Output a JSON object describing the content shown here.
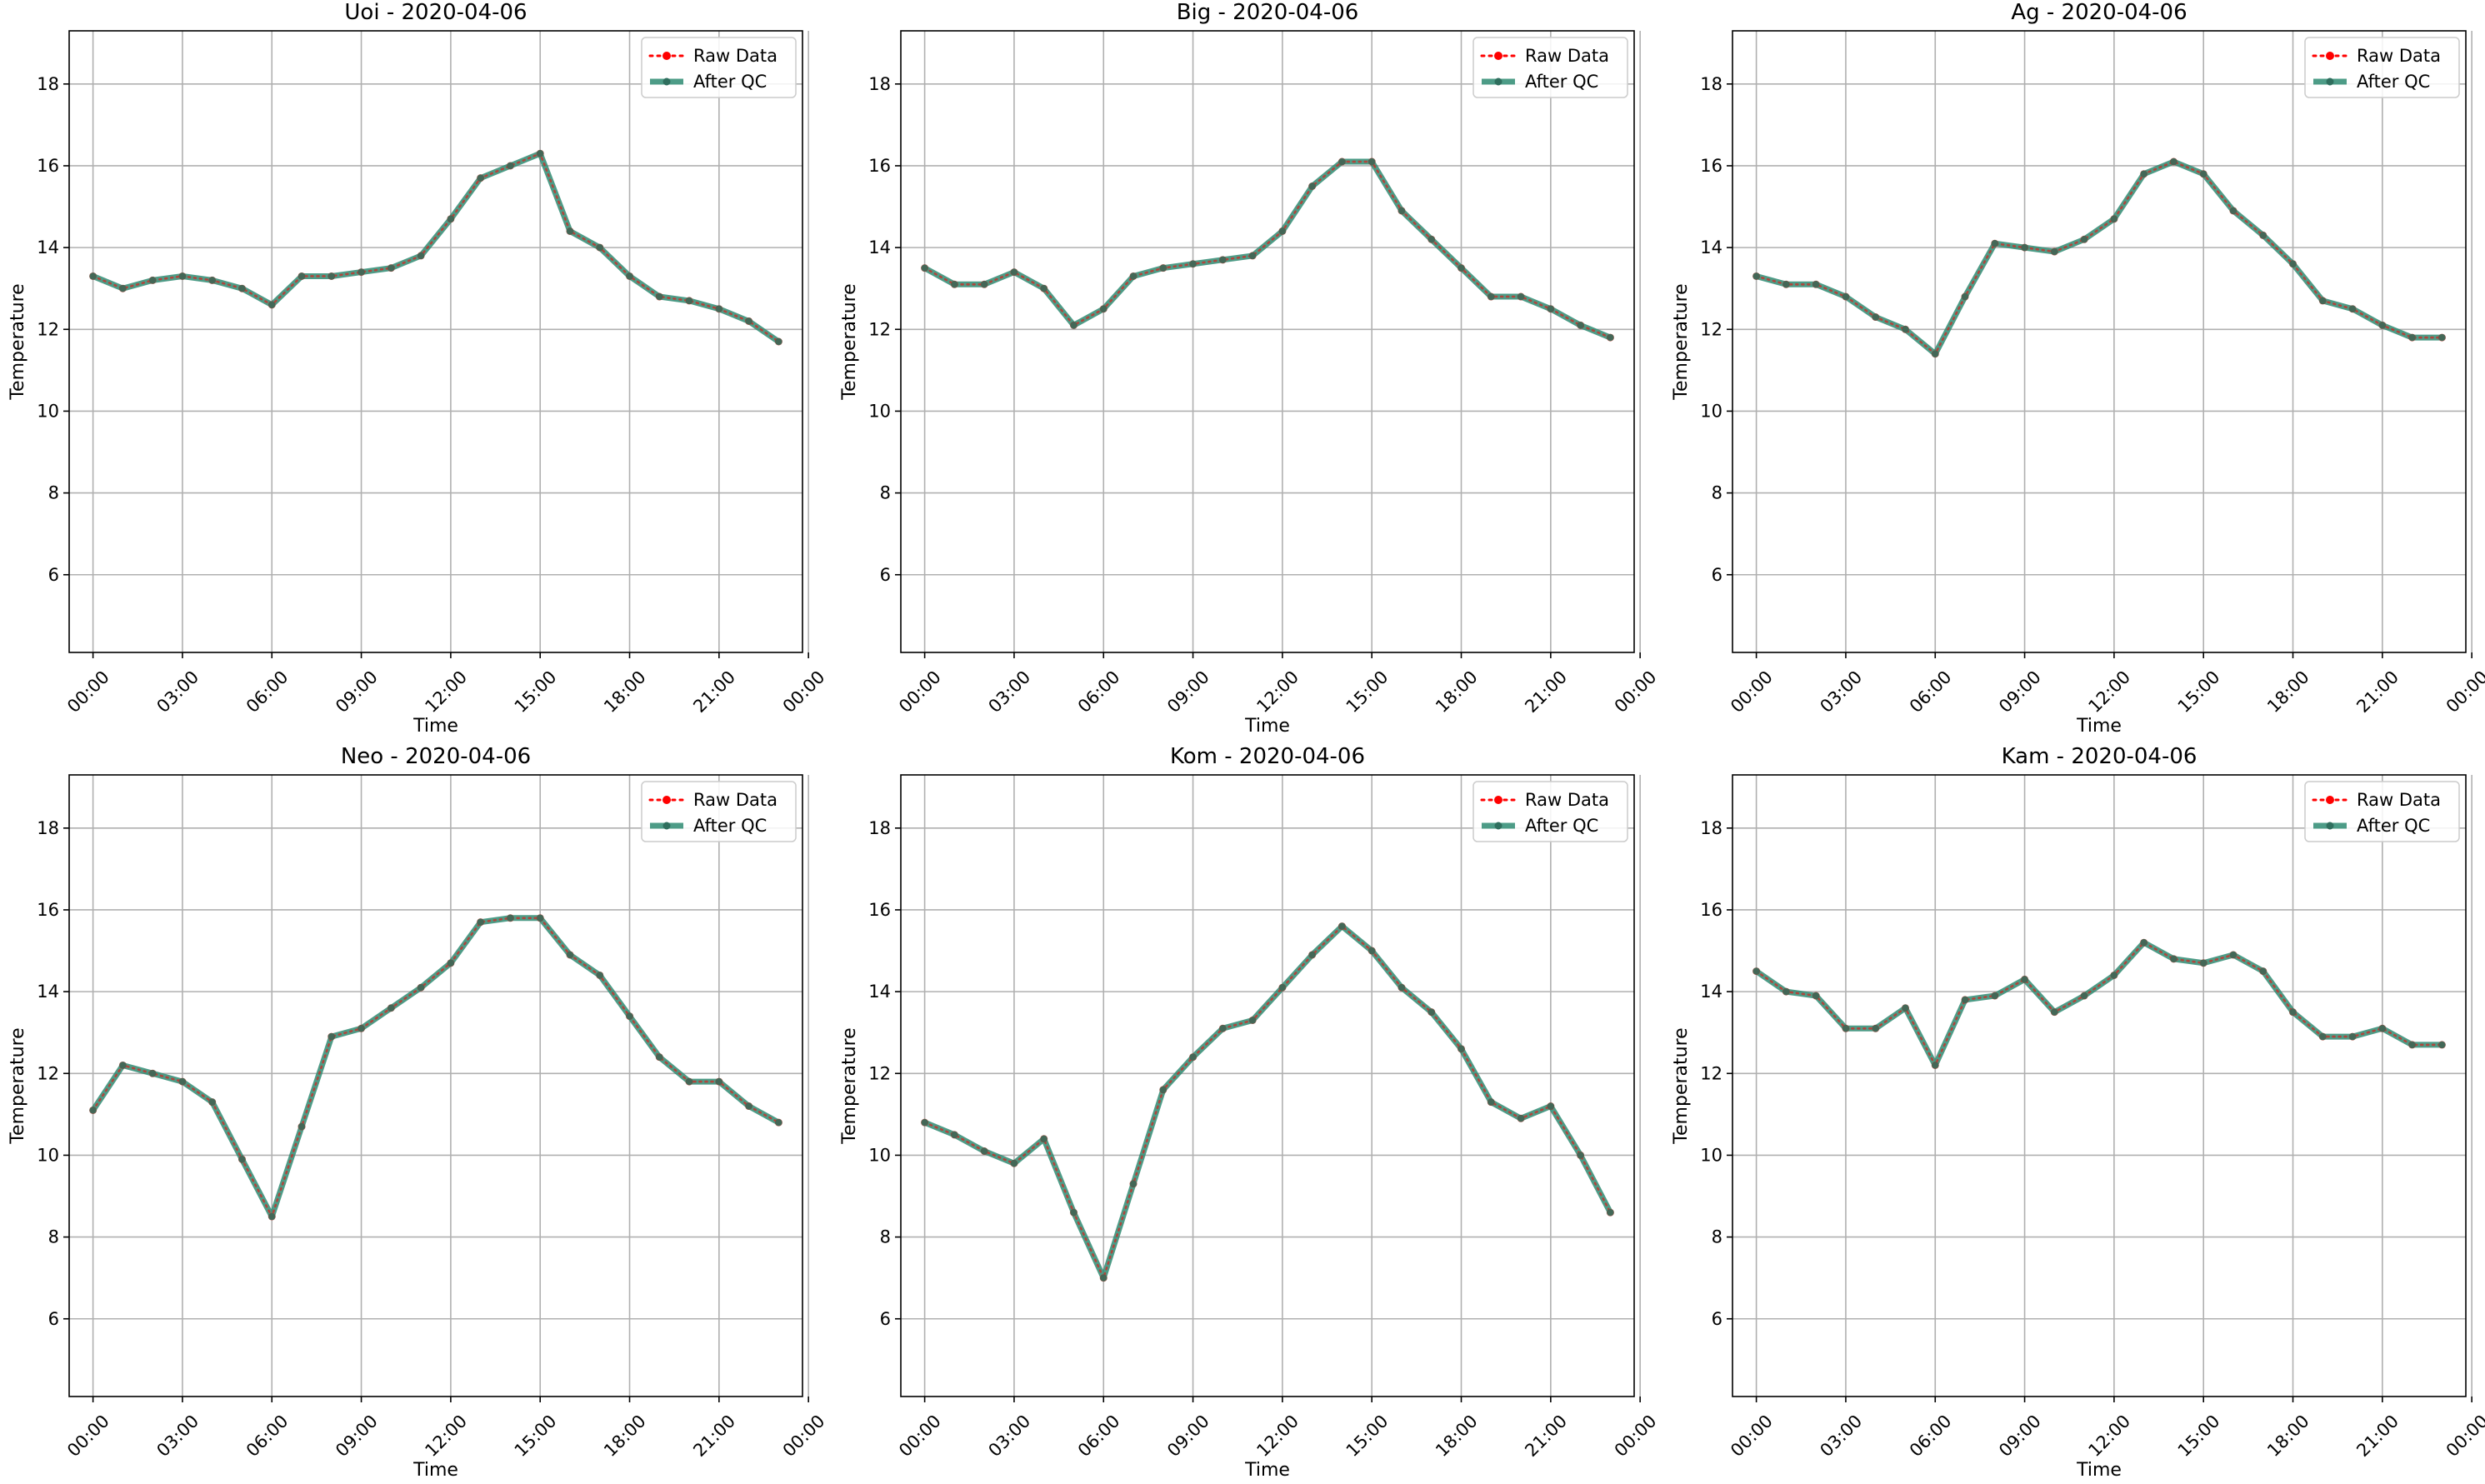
{
  "chart_data": [
    {
      "type": "line",
      "title": "Uoi - 2020-04-06",
      "xlabel": "Time",
      "ylabel": "Temperature",
      "ylim": [
        4.1,
        19.3
      ],
      "yticks": [
        6,
        8,
        10,
        12,
        14,
        16,
        18
      ],
      "xlim": [
        -0.8,
        23.8
      ],
      "xticks": [
        0,
        3,
        6,
        9,
        12,
        15,
        18,
        21,
        24
      ],
      "xticklabels": [
        "00:00",
        "03:00",
        "06:00",
        "09:00",
        "12:00",
        "15:00",
        "18:00",
        "21:00",
        "00:00"
      ],
      "grid": true,
      "legend": "top-right",
      "x": [
        0,
        1,
        2,
        3,
        4,
        5,
        6,
        7,
        8,
        9,
        10,
        11,
        12,
        13,
        14,
        15,
        16,
        17,
        18,
        19,
        20,
        21,
        22,
        23
      ],
      "series": [
        {
          "name": "Raw Data",
          "color": "#ff0000",
          "style": "dotted",
          "values": [
            13.3,
            13.0,
            13.2,
            13.3,
            13.2,
            13.0,
            12.6,
            13.3,
            13.3,
            13.4,
            13.5,
            13.8,
            14.7,
            15.7,
            16.0,
            16.3,
            14.4,
            14.0,
            13.3,
            12.8,
            12.7,
            12.5,
            12.2,
            11.7
          ]
        },
        {
          "name": "After QC",
          "color": "#2e8b72",
          "style": "solid",
          "values": [
            13.3,
            13.0,
            13.2,
            13.3,
            13.2,
            13.0,
            12.6,
            13.3,
            13.3,
            13.4,
            13.5,
            13.8,
            14.7,
            15.7,
            16.0,
            16.3,
            14.4,
            14.0,
            13.3,
            12.8,
            12.7,
            12.5,
            12.2,
            11.7
          ]
        }
      ]
    },
    {
      "type": "line",
      "title": "Big - 2020-04-06",
      "xlabel": "Time",
      "ylabel": "Temperature",
      "ylim": [
        4.1,
        19.3
      ],
      "yticks": [
        6,
        8,
        10,
        12,
        14,
        16,
        18
      ],
      "xlim": [
        -0.8,
        23.8
      ],
      "xticks": [
        0,
        3,
        6,
        9,
        12,
        15,
        18,
        21,
        24
      ],
      "xticklabels": [
        "00:00",
        "03:00",
        "06:00",
        "09:00",
        "12:00",
        "15:00",
        "18:00",
        "21:00",
        "00:00"
      ],
      "grid": true,
      "legend": "top-right",
      "x": [
        0,
        1,
        2,
        3,
        4,
        5,
        6,
        7,
        8,
        9,
        10,
        11,
        12,
        13,
        14,
        15,
        16,
        17,
        18,
        19,
        20,
        21,
        22,
        23
      ],
      "series": [
        {
          "name": "Raw Data",
          "color": "#ff0000",
          "style": "dotted",
          "values": [
            13.5,
            13.1,
            13.1,
            13.4,
            13.0,
            12.1,
            12.5,
            13.3,
            13.5,
            13.6,
            13.7,
            13.8,
            14.4,
            15.5,
            16.1,
            16.1,
            14.9,
            14.2,
            13.5,
            12.8,
            12.8,
            12.5,
            12.1,
            11.8
          ]
        },
        {
          "name": "After QC",
          "color": "#2e8b72",
          "style": "solid",
          "values": [
            13.5,
            13.1,
            13.1,
            13.4,
            13.0,
            12.1,
            12.5,
            13.3,
            13.5,
            13.6,
            13.7,
            13.8,
            14.4,
            15.5,
            16.1,
            16.1,
            14.9,
            14.2,
            13.5,
            12.8,
            12.8,
            12.5,
            12.1,
            11.8
          ]
        }
      ]
    },
    {
      "type": "line",
      "title": "Ag - 2020-04-06",
      "xlabel": "Time",
      "ylabel": "Temperature",
      "ylim": [
        4.1,
        19.3
      ],
      "yticks": [
        6,
        8,
        10,
        12,
        14,
        16,
        18
      ],
      "xlim": [
        -0.8,
        23.8
      ],
      "xticks": [
        0,
        3,
        6,
        9,
        12,
        15,
        18,
        21,
        24
      ],
      "xticklabels": [
        "00:00",
        "03:00",
        "06:00",
        "09:00",
        "12:00",
        "15:00",
        "18:00",
        "21:00",
        "00:00"
      ],
      "grid": true,
      "legend": "top-right",
      "x": [
        0,
        1,
        2,
        3,
        4,
        5,
        6,
        7,
        8,
        9,
        10,
        11,
        12,
        13,
        14,
        15,
        16,
        17,
        18,
        19,
        20,
        21,
        22,
        23
      ],
      "series": [
        {
          "name": "Raw Data",
          "color": "#ff0000",
          "style": "dotted",
          "values": [
            13.3,
            13.1,
            13.1,
            12.8,
            12.3,
            12.0,
            11.4,
            12.8,
            14.1,
            14.0,
            13.9,
            14.2,
            14.7,
            15.8,
            16.1,
            15.8,
            14.9,
            14.3,
            13.6,
            12.7,
            12.5,
            12.1,
            11.8,
            11.8
          ]
        },
        {
          "name": "After QC",
          "color": "#2e8b72",
          "style": "solid",
          "values": [
            13.3,
            13.1,
            13.1,
            12.8,
            12.3,
            12.0,
            11.4,
            12.8,
            14.1,
            14.0,
            13.9,
            14.2,
            14.7,
            15.8,
            16.1,
            15.8,
            14.9,
            14.3,
            13.6,
            12.7,
            12.5,
            12.1,
            11.8,
            11.8
          ]
        }
      ]
    },
    {
      "type": "line",
      "title": "Neo - 2020-04-06",
      "xlabel": "Time",
      "ylabel": "Temperature",
      "ylim": [
        4.1,
        19.3
      ],
      "yticks": [
        6,
        8,
        10,
        12,
        14,
        16,
        18
      ],
      "xlim": [
        -0.8,
        23.8
      ],
      "xticks": [
        0,
        3,
        6,
        9,
        12,
        15,
        18,
        21,
        24
      ],
      "xticklabels": [
        "00:00",
        "03:00",
        "06:00",
        "09:00",
        "12:00",
        "15:00",
        "18:00",
        "21:00",
        "00:00"
      ],
      "grid": true,
      "legend": "top-right",
      "x": [
        0,
        1,
        2,
        3,
        4,
        5,
        6,
        7,
        8,
        9,
        10,
        11,
        12,
        13,
        14,
        15,
        16,
        17,
        18,
        19,
        20,
        21,
        22,
        23
      ],
      "series": [
        {
          "name": "Raw Data",
          "color": "#ff0000",
          "style": "dotted",
          "values": [
            11.1,
            12.2,
            12.0,
            11.8,
            11.3,
            9.9,
            8.5,
            10.7,
            12.9,
            13.1,
            13.6,
            14.1,
            14.7,
            15.7,
            15.8,
            15.8,
            14.9,
            14.4,
            13.4,
            12.4,
            11.8,
            11.8,
            11.2,
            10.8
          ]
        },
        {
          "name": "After QC",
          "color": "#2e8b72",
          "style": "solid",
          "values": [
            11.1,
            12.2,
            12.0,
            11.8,
            11.3,
            9.9,
            8.5,
            10.7,
            12.9,
            13.1,
            13.6,
            14.1,
            14.7,
            15.7,
            15.8,
            15.8,
            14.9,
            14.4,
            13.4,
            12.4,
            11.8,
            11.8,
            11.2,
            10.8
          ]
        }
      ]
    },
    {
      "type": "line",
      "title": "Kom - 2020-04-06",
      "xlabel": "Time",
      "ylabel": "Temperature",
      "ylim": [
        4.1,
        19.3
      ],
      "yticks": [
        6,
        8,
        10,
        12,
        14,
        16,
        18
      ],
      "xlim": [
        -0.8,
        23.8
      ],
      "xticks": [
        0,
        3,
        6,
        9,
        12,
        15,
        18,
        21,
        24
      ],
      "xticklabels": [
        "00:00",
        "03:00",
        "06:00",
        "09:00",
        "12:00",
        "15:00",
        "18:00",
        "21:00",
        "00:00"
      ],
      "grid": true,
      "legend": "top-right",
      "x": [
        0,
        1,
        2,
        3,
        4,
        5,
        6,
        7,
        8,
        9,
        10,
        11,
        12,
        13,
        14,
        15,
        16,
        17,
        18,
        19,
        20,
        21,
        22,
        23
      ],
      "series": [
        {
          "name": "Raw Data",
          "color": "#ff0000",
          "style": "dotted",
          "values": [
            10.8,
            10.5,
            10.1,
            9.8,
            10.4,
            8.6,
            7.0,
            9.3,
            11.6,
            12.4,
            13.1,
            13.3,
            14.1,
            14.9,
            15.6,
            15.0,
            14.1,
            13.5,
            12.6,
            11.3,
            10.9,
            11.2,
            10.0,
            8.6
          ]
        },
        {
          "name": "After QC",
          "color": "#2e8b72",
          "style": "solid",
          "values": [
            10.8,
            10.5,
            10.1,
            9.8,
            10.4,
            8.6,
            7.0,
            9.3,
            11.6,
            12.4,
            13.1,
            13.3,
            14.1,
            14.9,
            15.6,
            15.0,
            14.1,
            13.5,
            12.6,
            11.3,
            10.9,
            11.2,
            10.0,
            8.6
          ]
        }
      ]
    },
    {
      "type": "line",
      "title": "Kam - 2020-04-06",
      "xlabel": "Time",
      "ylabel": "Temperature",
      "ylim": [
        4.1,
        19.3
      ],
      "yticks": [
        6,
        8,
        10,
        12,
        14,
        16,
        18
      ],
      "xlim": [
        -0.8,
        23.8
      ],
      "xticks": [
        0,
        3,
        6,
        9,
        12,
        15,
        18,
        21,
        24
      ],
      "xticklabels": [
        "00:00",
        "03:00",
        "06:00",
        "09:00",
        "12:00",
        "15:00",
        "18:00",
        "21:00",
        "00:00"
      ],
      "grid": true,
      "legend": "top-right",
      "x": [
        0,
        1,
        2,
        3,
        4,
        5,
        6,
        7,
        8,
        9,
        10,
        11,
        12,
        13,
        14,
        15,
        16,
        17,
        18,
        19,
        20,
        21,
        22,
        23
      ],
      "series": [
        {
          "name": "Raw Data",
          "color": "#ff0000",
          "style": "dotted",
          "values": [
            14.5,
            14.0,
            13.9,
            13.1,
            13.1,
            13.6,
            12.2,
            13.8,
            13.9,
            14.3,
            13.5,
            13.9,
            14.4,
            15.2,
            14.8,
            14.7,
            14.9,
            14.5,
            13.5,
            12.9,
            12.9,
            13.1,
            12.7,
            12.7
          ]
        },
        {
          "name": "After QC",
          "color": "#2e8b72",
          "style": "solid",
          "values": [
            14.5,
            14.0,
            13.9,
            13.1,
            13.1,
            13.6,
            12.2,
            13.8,
            13.9,
            14.3,
            13.5,
            13.9,
            14.4,
            15.2,
            14.8,
            14.7,
            14.9,
            14.5,
            13.5,
            12.9,
            12.9,
            13.1,
            12.7,
            12.7
          ]
        }
      ]
    }
  ]
}
